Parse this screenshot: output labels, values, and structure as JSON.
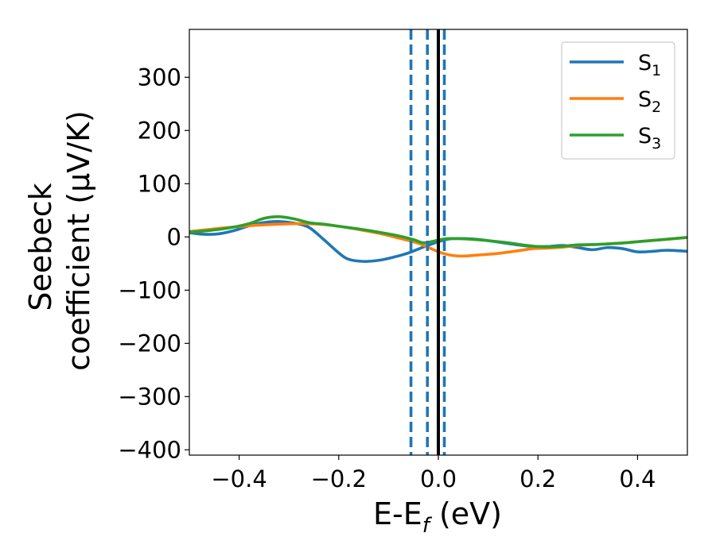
{
  "chart_data": {
    "type": "line",
    "xlabel": "E-E",
    "xlabel_subscript": "f",
    "xlabel_unit": " (eV)",
    "ylabel_line1": "Seebeck",
    "ylabel_line2": "coefficient  (μV/K)",
    "xlim": [
      -0.5,
      0.5
    ],
    "ylim": [
      -410,
      390
    ],
    "x_ticks": [
      -0.4,
      -0.2,
      0.0,
      0.2,
      0.4
    ],
    "x_tick_labels": [
      "−0.4",
      "−0.2",
      "0.0",
      "0.2",
      "0.4"
    ],
    "y_ticks": [
      300,
      200,
      100,
      0,
      -100,
      -200,
      -300,
      -400
    ],
    "y_tick_labels": [
      "300",
      "200",
      "100",
      "0",
      "−100",
      "−200",
      "−300",
      "−400"
    ],
    "grid": false,
    "legend_position": "top-right",
    "series": [
      {
        "name": "S",
        "subscript": "1",
        "color": "#1f77b4",
        "points": [
          [
            -0.5,
            8
          ],
          [
            -0.47,
            5
          ],
          [
            -0.44,
            6
          ],
          [
            -0.41,
            12
          ],
          [
            -0.38,
            21
          ],
          [
            -0.35,
            27
          ],
          [
            -0.32,
            29
          ],
          [
            -0.29,
            26
          ],
          [
            -0.26,
            18
          ],
          [
            -0.23,
            -5
          ],
          [
            -0.2,
            -30
          ],
          [
            -0.18,
            -42
          ],
          [
            -0.15,
            -46
          ],
          [
            -0.12,
            -44
          ],
          [
            -0.09,
            -38
          ],
          [
            -0.06,
            -30
          ],
          [
            -0.03,
            -19
          ],
          [
            0.0,
            -9
          ],
          [
            0.02,
            -4
          ],
          [
            0.04,
            -3
          ],
          [
            0.07,
            -4
          ],
          [
            0.1,
            -7
          ],
          [
            0.13,
            -11
          ],
          [
            0.16,
            -15
          ],
          [
            0.19,
            -18
          ],
          [
            0.22,
            -18
          ],
          [
            0.25,
            -16
          ],
          [
            0.28,
            -20
          ],
          [
            0.31,
            -24
          ],
          [
            0.34,
            -20
          ],
          [
            0.37,
            -22
          ],
          [
            0.4,
            -28
          ],
          [
            0.43,
            -27
          ],
          [
            0.46,
            -25
          ],
          [
            0.5,
            -27
          ]
        ]
      },
      {
        "name": "S",
        "subscript": "2",
        "color": "#ff7f0e",
        "points": [
          [
            -0.5,
            10
          ],
          [
            -0.44,
            16
          ],
          [
            -0.38,
            21
          ],
          [
            -0.32,
            24
          ],
          [
            -0.28,
            25
          ],
          [
            -0.24,
            24
          ],
          [
            -0.2,
            20
          ],
          [
            -0.16,
            14
          ],
          [
            -0.12,
            7
          ],
          [
            -0.08,
            -2
          ],
          [
            -0.04,
            -12
          ],
          [
            -0.01,
            -24
          ],
          [
            0.01,
            -31
          ],
          [
            0.03,
            -35
          ],
          [
            0.05,
            -36
          ],
          [
            0.08,
            -34
          ],
          [
            0.12,
            -31
          ],
          [
            0.16,
            -26
          ],
          [
            0.19,
            -22
          ],
          [
            0.22,
            -21
          ],
          [
            0.25,
            -19
          ],
          [
            0.28,
            -16
          ],
          [
            0.32,
            -14
          ],
          [
            0.36,
            -12
          ],
          [
            0.4,
            -9
          ],
          [
            0.45,
            -5
          ],
          [
            0.5,
            -1
          ]
        ]
      },
      {
        "name": "S",
        "subscript": "3",
        "color": "#2ca02c",
        "points": [
          [
            -0.5,
            9
          ],
          [
            -0.46,
            12
          ],
          [
            -0.42,
            17
          ],
          [
            -0.38,
            25
          ],
          [
            -0.35,
            35
          ],
          [
            -0.32,
            38
          ],
          [
            -0.29,
            34
          ],
          [
            -0.26,
            27
          ],
          [
            -0.23,
            24
          ],
          [
            -0.2,
            20
          ],
          [
            -0.16,
            15
          ],
          [
            -0.12,
            9
          ],
          [
            -0.08,
            2
          ],
          [
            -0.05,
            -5
          ],
          [
            -0.03,
            -11
          ],
          [
            -0.01,
            -8
          ],
          [
            0.01,
            -4
          ],
          [
            0.03,
            -3
          ],
          [
            0.06,
            -4
          ],
          [
            0.1,
            -7
          ],
          [
            0.14,
            -11
          ],
          [
            0.17,
            -15
          ],
          [
            0.2,
            -18
          ],
          [
            0.24,
            -18
          ],
          [
            0.28,
            -15
          ],
          [
            0.32,
            -14
          ],
          [
            0.36,
            -12
          ],
          [
            0.4,
            -9
          ],
          [
            0.45,
            -5
          ],
          [
            0.5,
            -1
          ]
        ]
      }
    ],
    "vertical_lines": [
      {
        "x": -0.055,
        "style": "dashed",
        "color": "#1f77b4"
      },
      {
        "x": -0.022,
        "style": "dashed",
        "color": "#1f77b4"
      },
      {
        "x": 0.012,
        "style": "dashed",
        "color": "#1f77b4"
      },
      {
        "x": 0.0,
        "style": "solid",
        "color": "#000000"
      }
    ]
  }
}
